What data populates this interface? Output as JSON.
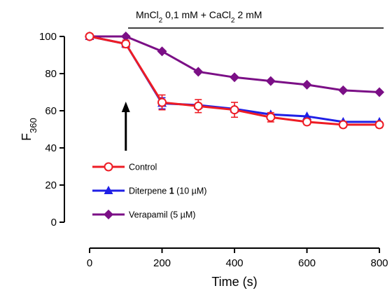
{
  "chart_data": {
    "type": "line",
    "title": "",
    "annotation": {
      "parts": [
        {
          "text": "MnCl"
        },
        {
          "text": "2",
          "sub": true
        },
        {
          "text": " 0,1 mM + CaCl"
        },
        {
          "text": "2",
          "sub": true
        },
        {
          "text": " 2 mM"
        }
      ],
      "x_range": [
        190,
        830
      ]
    },
    "arrow_at_x": 100,
    "xlabel": "Time (s)",
    "ylabel": {
      "main": "F",
      "sub": "360"
    },
    "xlim": [
      0,
      800
    ],
    "ylim": [
      0,
      100
    ],
    "x_ticks": [
      0,
      200,
      400,
      600,
      800
    ],
    "y_ticks": [
      0,
      20,
      40,
      60,
      80,
      100
    ],
    "grid": false,
    "legend_position": "bottom-left",
    "series": [
      {
        "name": "Verapamil (5 µM)",
        "color": "#7b0f86",
        "marker": "diamond",
        "x": [
          0,
          100,
          200,
          300,
          400,
          500,
          600,
          700,
          800
        ],
        "y": [
          100,
          100,
          92,
          81,
          78,
          76,
          74,
          71,
          70
        ]
      },
      {
        "name_parts": [
          {
            "text": "Diterpene "
          },
          {
            "text": "1",
            "bold": true
          },
          {
            "text": " (10 µM)"
          }
        ],
        "color": "#1f1fe6",
        "marker": "triangle",
        "x": [
          0,
          100,
          200,
          300,
          400,
          500,
          600,
          700,
          800
        ],
        "y": [
          100,
          96,
          64,
          63,
          61,
          58,
          57,
          54,
          54
        ],
        "err": [
          0,
          0,
          3,
          0,
          0,
          0,
          0,
          0,
          0
        ]
      },
      {
        "name": "Control",
        "color": "#ee1c24",
        "marker": "circle-open",
        "x": [
          0,
          100,
          200,
          300,
          400,
          500,
          600,
          700,
          800
        ],
        "y": [
          100,
          96,
          64.5,
          62.5,
          60.5,
          56.5,
          54,
          52.5,
          52.5
        ],
        "err": [
          0,
          2,
          4,
          3.5,
          4,
          2.5,
          1.5,
          1.5,
          1.5
        ]
      }
    ]
  }
}
